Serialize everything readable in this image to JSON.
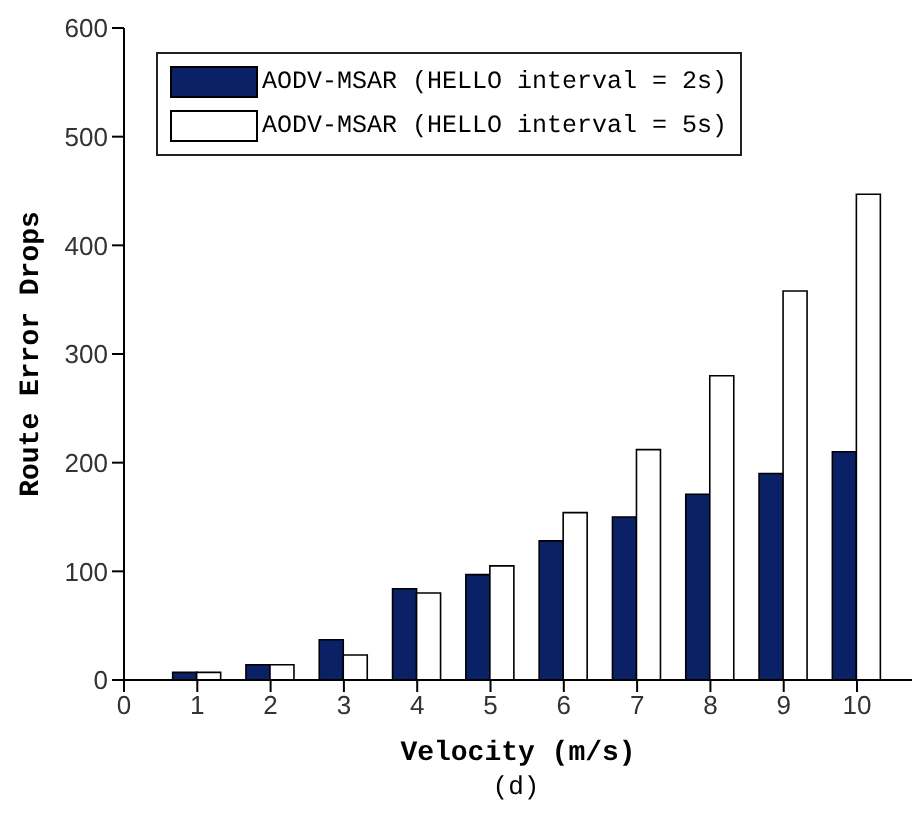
{
  "chart_data": {
    "type": "bar",
    "xlabel": "Velocity (m/s)",
    "ylabel": "Route Error Drops",
    "x": [
      1,
      2,
      3,
      4,
      5,
      6,
      7,
      8,
      9,
      10
    ],
    "series": [
      {
        "name": "AODV-MSAR (HELLO interval = 2s)",
        "color": "#0b2166",
        "values": [
          7,
          14,
          37,
          84,
          97,
          128,
          150,
          171,
          190,
          210
        ]
      },
      {
        "name": "AODV-MSAR (HELLO interval = 5s)",
        "color": "#ffffff",
        "values": [
          7,
          14,
          23,
          80,
          105,
          154,
          212,
          280,
          358,
          447
        ]
      }
    ],
    "xlim": [
      0,
      10.75
    ],
    "xticks": [
      0,
      1,
      2,
      3,
      4,
      5,
      6,
      7,
      8,
      9,
      10
    ],
    "ylim": [
      0,
      600
    ],
    "yticks": [
      0,
      100,
      200,
      300,
      400,
      500,
      600
    ],
    "grid": false,
    "legend": "top left",
    "annotations": [
      "(d)"
    ]
  }
}
